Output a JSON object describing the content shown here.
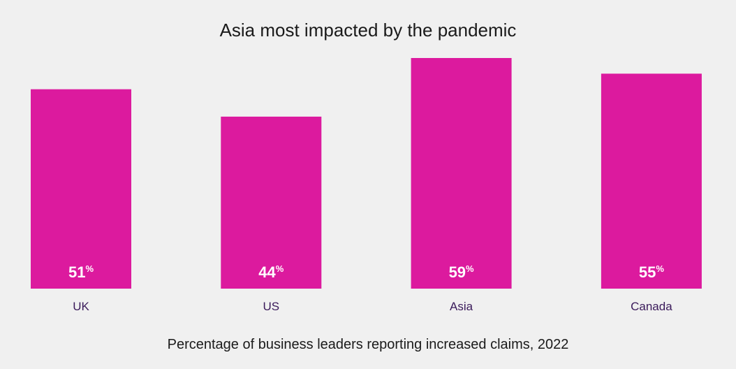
{
  "chart_data": {
    "type": "bar",
    "title": "Asia most impacted by the pandemic",
    "subtitle": "Percentage of business leaders reporting increased claims, 2022",
    "categories": [
      "UK",
      "US",
      "Asia",
      "Canada"
    ],
    "values": [
      51,
      44,
      59,
      55
    ],
    "value_suffix": "%",
    "bar_color": "#dc1a9e",
    "ylim": [
      0,
      59
    ],
    "grid": false,
    "legend": "none"
  }
}
